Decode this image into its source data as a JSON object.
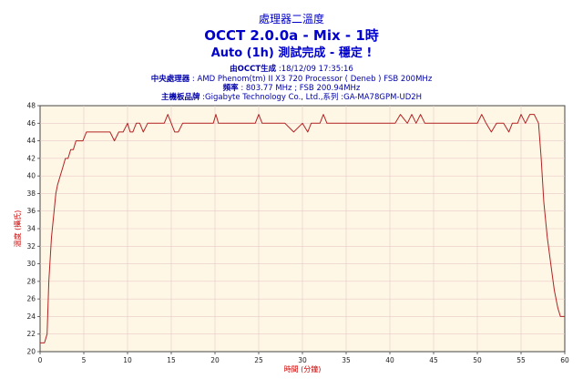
{
  "header": {
    "title_top": "處理器二溫度",
    "title_main": "OCCT 2.0.0a - Mix - 1時",
    "title_sub": "Auto (1h) 測試完成 - 穩定 !"
  },
  "info_lines": [
    {
      "label": "由OCCT生成",
      "value": " :18/12/09 17:35:16"
    },
    {
      "label": "中央處理器",
      "value": " : AMD Phenom(tm) II X3 720 Processor ( Deneb ) FSB 200MHz"
    },
    {
      "label": "頻率",
      "value": " : 803.77 MHz ; FSB 200.94MHz"
    },
    {
      "label": "主機板品牌",
      "value": " :Gigabyte Technology Co., Ltd.,系列 :GA-MA78GPM-UD2H"
    }
  ],
  "colors": {
    "plot_bg": "#fff7e6",
    "line": "#b22222",
    "grid": "#e8c8c8",
    "title": "#0000cc",
    "axis_label": "#cc0000"
  },
  "chart_data": {
    "type": "line",
    "xlabel": "時間 (分鐘)",
    "ylabel": "溫度 (攝氏)",
    "xlim": [
      0,
      60
    ],
    "ylim": [
      20,
      48
    ],
    "x_ticks": [
      "0",
      "5",
      "10",
      "15",
      "20",
      "25",
      "30",
      "35",
      "40",
      "45",
      "50",
      "55",
      "60"
    ],
    "y_ticks": [
      "20",
      "22",
      "24",
      "26",
      "28",
      "30",
      "32",
      "34",
      "36",
      "38",
      "40",
      "42",
      "44",
      "46",
      "48"
    ],
    "grid": true,
    "series": [
      {
        "x": [
          0,
          0.5,
          0.8,
          1.0,
          1.3,
          1.6,
          1.8,
          2.0,
          2.3,
          2.6,
          2.9,
          3.2,
          3.5,
          3.8,
          4.1,
          4.5,
          4.9,
          5.3,
          5.7,
          6.1,
          6.5,
          7.0,
          7.5,
          8.0,
          8.5,
          9.0,
          9.5,
          10.0,
          10.3,
          10.6,
          11.0,
          11.4,
          11.8,
          12.3,
          12.8,
          13.3,
          13.8,
          14.2,
          14.6,
          15.0,
          15.4,
          15.8,
          16.3,
          17.0,
          18.0,
          19.0,
          19.8,
          20.1,
          20.4,
          21.0,
          22.0,
          23.0,
          24.0,
          24.6,
          25.0,
          25.4,
          26.0,
          27.0,
          28.0,
          29.0,
          30.0,
          30.6,
          31.0,
          31.5,
          32.0,
          32.4,
          32.8,
          33.2,
          34.0,
          35.0,
          36.0,
          37.0,
          38.0,
          39.0,
          40.0,
          40.6,
          41.2,
          42.0,
          42.5,
          43.0,
          43.5,
          44.0,
          45.0,
          46.0,
          47.0,
          48.0,
          49.0,
          50.0,
          50.5,
          51.0,
          51.6,
          52.2,
          53.0,
          53.6,
          54.0,
          54.6,
          55.0,
          55.5,
          56.0,
          56.5,
          57.0,
          57.3,
          57.6,
          58.0,
          58.4,
          58.8,
          59.2,
          59.5,
          59.8,
          60.0
        ],
        "y": [
          21,
          21,
          22,
          28,
          33,
          36,
          38,
          39,
          40,
          41,
          42,
          42,
          43,
          43,
          44,
          44,
          44,
          45,
          45,
          45,
          45,
          45,
          45,
          45,
          44,
          45,
          45,
          46,
          45,
          45,
          46,
          46,
          45,
          46,
          46,
          46,
          46,
          46,
          47,
          46,
          45,
          45,
          46,
          46,
          46,
          46,
          46,
          47,
          46,
          46,
          46,
          46,
          46,
          46,
          47,
          46,
          46,
          46,
          46,
          45,
          46,
          45,
          46,
          46,
          46,
          47,
          46,
          46,
          46,
          46,
          46,
          46,
          46,
          46,
          46,
          46,
          47,
          46,
          47,
          46,
          47,
          46,
          46,
          46,
          46,
          46,
          46,
          46,
          47,
          46,
          45,
          46,
          46,
          45,
          46,
          46,
          47,
          46,
          47,
          47,
          46,
          42,
          37,
          33,
          30,
          27,
          25,
          24,
          24,
          24
        ]
      }
    ]
  }
}
